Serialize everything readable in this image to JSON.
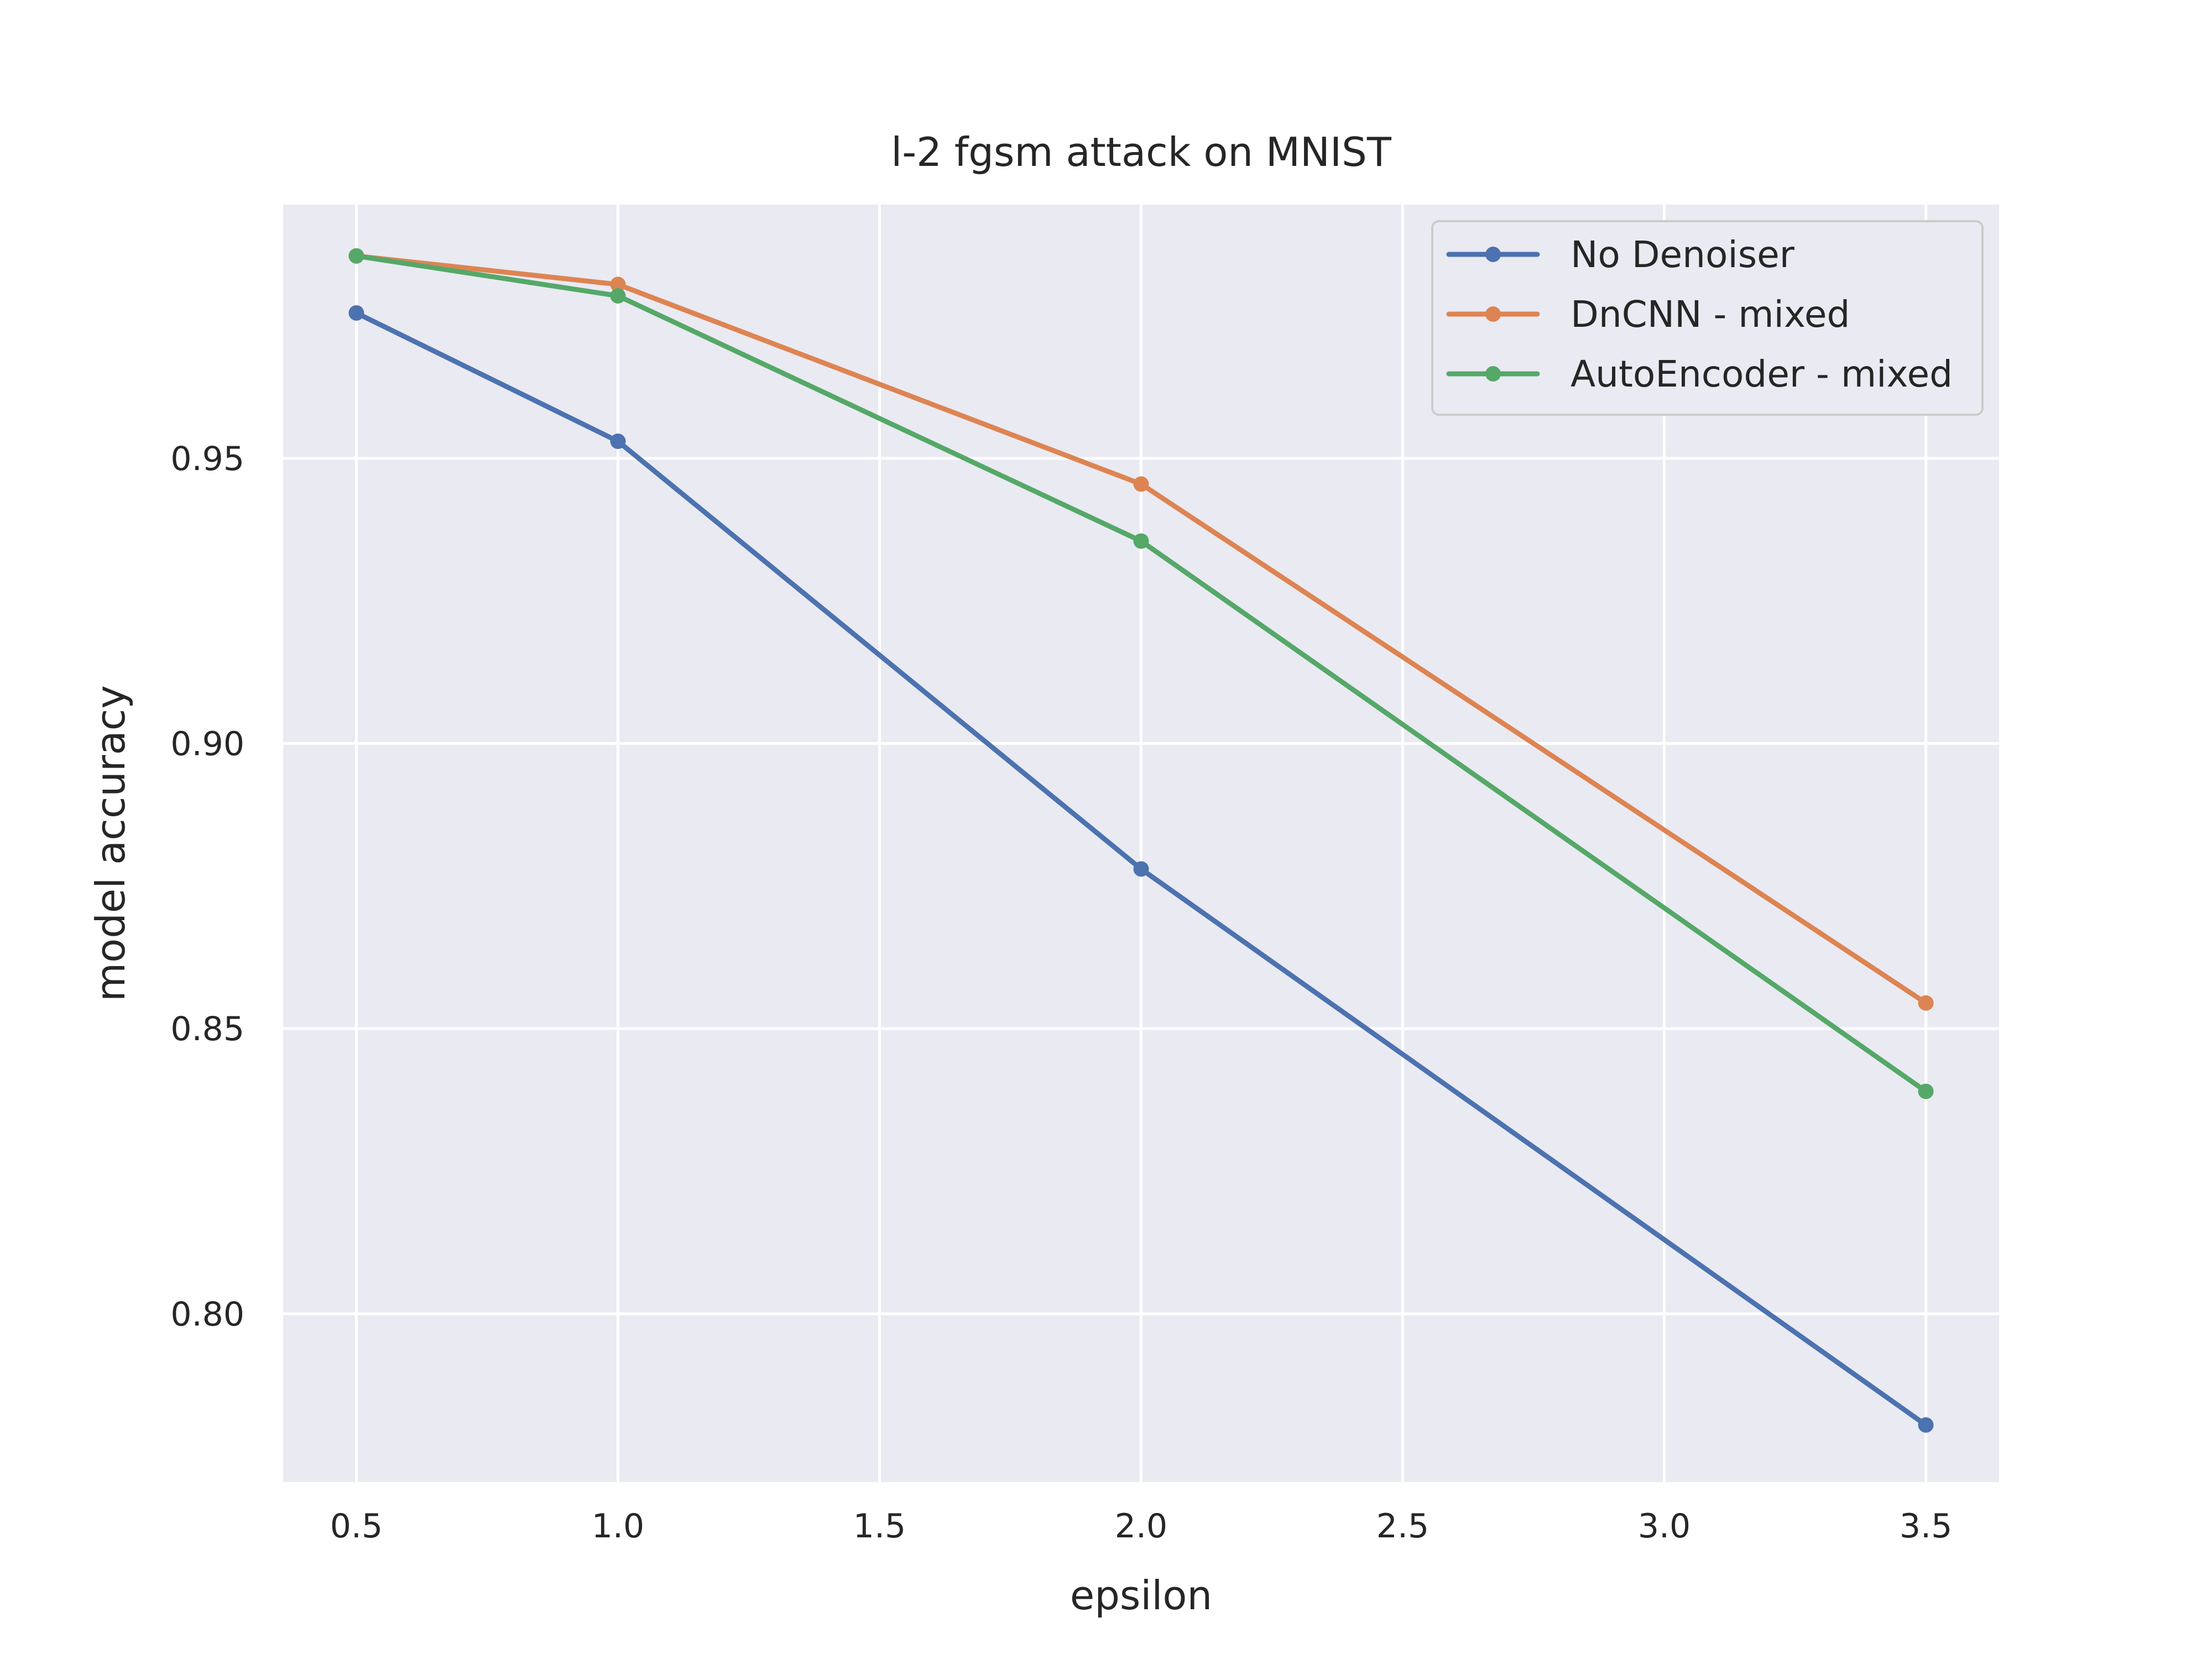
{
  "chart_data": {
    "type": "line",
    "title": "l-2 fgsm attack on MNIST",
    "xlabel": "epsilon",
    "ylabel": "model accuracy",
    "xlim": [
      0.36,
      3.64
    ],
    "ylim": [
      0.7705,
      0.9945
    ],
    "xticks": [
      0.5,
      1.0,
      1.5,
      2.0,
      2.5,
      3.0,
      3.5
    ],
    "xtick_labels": [
      "0.5",
      "1.0",
      "1.5",
      "2.0",
      "2.5",
      "3.0",
      "3.5"
    ],
    "yticks": [
      0.8,
      0.85,
      0.9,
      0.95
    ],
    "ytick_labels": [
      "0.80",
      "0.85",
      "0.90",
      "0.95"
    ],
    "grid": true,
    "legend_position": "top-right",
    "background": "#eaeaf2",
    "x": [
      0.5,
      1.0,
      2.0,
      3.5
    ],
    "series": [
      {
        "name": "No Denoiser",
        "color": "#4c72b0",
        "values": [
          0.9755,
          0.953,
          0.878,
          0.7805
        ]
      },
      {
        "name": "DnCNN - mixed",
        "color": "#dd8452",
        "values": [
          0.9855,
          0.9805,
          0.9455,
          0.8545
        ]
      },
      {
        "name": "AutoEncoder - mixed",
        "color": "#55a868",
        "values": [
          0.9855,
          0.9785,
          0.9355,
          0.839
        ]
      }
    ]
  }
}
